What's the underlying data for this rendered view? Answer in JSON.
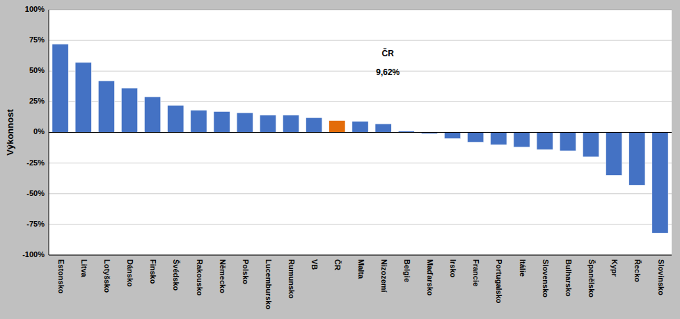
{
  "chart_data": {
    "type": "bar",
    "ylabel": "Výkonnost",
    "categories": [
      "Estonsko",
      "Litva",
      "Lotyšsko",
      "Dánsko",
      "Finsko",
      "Švédsko",
      "Rakousko",
      "Německo",
      "Polsko",
      "Lucembursko",
      "Rumunsko",
      "VB",
      "ČR",
      "Malta",
      "Nizozemí",
      "Belgie",
      "Maďarsko",
      "Irsko",
      "Francie",
      "Portugalsko",
      "Itálie",
      "Slovensko",
      "Bulharsko",
      "Španělsko",
      "Kypr",
      "Řecko",
      "Slovinsko"
    ],
    "values": [
      72,
      57,
      42,
      36,
      29,
      22,
      18,
      17,
      16,
      14,
      14,
      12,
      9.62,
      9,
      7,
      1,
      -1,
      -5,
      -8,
      -10,
      -12,
      -14,
      -15,
      -20,
      -35,
      -43,
      -82
    ],
    "colors": [
      "#4472C4",
      "#4472C4",
      "#4472C4",
      "#4472C4",
      "#4472C4",
      "#4472C4",
      "#4472C4",
      "#4472C4",
      "#4472C4",
      "#4472C4",
      "#4472C4",
      "#4472C4",
      "#E36C09",
      "#4472C4",
      "#4472C4",
      "#4472C4",
      "#4472C4",
      "#4472C4",
      "#4472C4",
      "#4472C4",
      "#4472C4",
      "#4472C4",
      "#4472C4",
      "#4472C4",
      "#4472C4",
      "#4472C4",
      "#4472C4"
    ],
    "ylim": [
      -100,
      100
    ],
    "yticks": [
      {
        "value": -100,
        "label": "-100%"
      },
      {
        "value": -75,
        "label": "-75%"
      },
      {
        "value": -50,
        "label": "-50%"
      },
      {
        "value": -25,
        "label": "-25%"
      },
      {
        "value": 0,
        "label": "0%"
      },
      {
        "value": 25,
        "label": "25%"
      },
      {
        "value": 50,
        "label": "50%"
      },
      {
        "value": 75,
        "label": "75%"
      },
      {
        "value": 100,
        "label": "100%"
      }
    ],
    "grid": true,
    "annotations": [
      {
        "text": "ČR",
        "x": 14.2,
        "y": 62
      },
      {
        "text": "9,62%",
        "x": 14.2,
        "y": 47
      }
    ]
  }
}
